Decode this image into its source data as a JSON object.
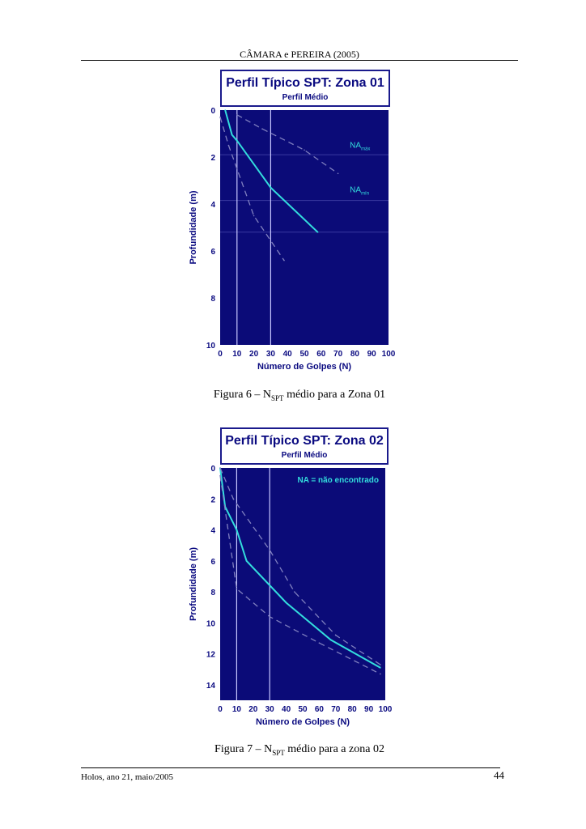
{
  "header": "CÂMARA e PEREIRA (2005)",
  "footer": {
    "left": "Holos, ano 21, maio/2005",
    "page": "44"
  },
  "colors": {
    "plot_bg": "#0b0b78",
    "axis_text": "#0a0a80",
    "mean_line": "#33dddd",
    "dashed": "#8080c0",
    "vlines": "#c8c8ff",
    "na_lines": "#3a3aa0"
  },
  "chart_data": [
    {
      "type": "line",
      "title": "Perfil Típico SPT: Zona 01",
      "subtitle": "Perfil Médio",
      "xlabel": "Número de Golpes (N)",
      "ylabel": "Profundidade (m)",
      "xlim": [
        0,
        100
      ],
      "ylim": [
        0,
        10
      ],
      "y_inverted": true,
      "xticks": [
        "0",
        "10",
        "20",
        "30",
        "40",
        "50",
        "60",
        "70",
        "80",
        "90",
        "100"
      ],
      "yticks": [
        "0",
        "2",
        "4",
        "6",
        "8",
        "10"
      ],
      "vertical_lines": [
        10,
        30
      ],
      "na_lines": [
        1.9,
        3.85,
        5.2
      ],
      "annotations": [
        {
          "base": "NA",
          "sub": "máx",
          "x": 77,
          "y": 1.6
        },
        {
          "base": "NA",
          "sub": "mín",
          "x": 77,
          "y": 3.5
        }
      ],
      "series": [
        {
          "style": "solid",
          "values": [
            [
              3,
              0
            ],
            [
              7,
              1.05
            ],
            [
              10,
              1.3
            ],
            [
              30,
              3.3
            ],
            [
              58,
              5.2
            ]
          ]
        },
        {
          "style": "dashed",
          "values": [
            [
              10,
              0.2
            ],
            [
              25,
              0.8
            ],
            [
              50,
              1.7
            ],
            [
              70,
              2.7
            ]
          ]
        },
        {
          "style": "dashed",
          "values": [
            [
              0,
              0.3
            ],
            [
              5,
              1.5
            ],
            [
              10,
              2.5
            ],
            [
              20,
              4.5
            ],
            [
              38,
              6.4
            ]
          ]
        }
      ]
    },
    {
      "type": "line",
      "title": "Perfil Típico SPT: Zona 02",
      "subtitle": "Perfil Médio",
      "xlabel": "Número de Golpes (N)",
      "ylabel": "Profundidade (m)",
      "xlim": [
        0,
        100
      ],
      "ylim": [
        0,
        15
      ],
      "y_inverted": true,
      "xticks": [
        "0",
        "10",
        "20",
        "30",
        "40",
        "50",
        "60",
        "70",
        "80",
        "90",
        "100"
      ],
      "yticks": [
        "0",
        "2",
        "4",
        "6",
        "8",
        "10",
        "12",
        "14"
      ],
      "vertical_lines": [
        10,
        30
      ],
      "na_lines": [],
      "legend_text": "NA = não encontrado",
      "annotations": [],
      "series": [
        {
          "style": "solid",
          "values": [
            [
              0,
              0
            ],
            [
              3,
              2.5
            ],
            [
              10,
              4
            ],
            [
              16,
              6
            ],
            [
              40,
              8.7
            ],
            [
              67,
              11.1
            ],
            [
              97,
              12.9
            ]
          ]
        },
        {
          "style": "dashed",
          "values": [
            [
              0,
              0
            ],
            [
              8,
              2
            ],
            [
              30,
              5.3
            ],
            [
              45,
              8
            ],
            [
              70,
              10.8
            ],
            [
              97,
              12.7
            ]
          ]
        },
        {
          "style": "dashed",
          "values": [
            [
              0,
              0.5
            ],
            [
              10,
              7.8
            ],
            [
              30,
              9.6
            ],
            [
              60,
              11.3
            ],
            [
              97,
              13.3
            ]
          ]
        }
      ]
    }
  ],
  "captions": [
    {
      "pre": "Figura 6 – N",
      "sub": "SPT",
      "post": " médio para a Zona 01"
    },
    {
      "pre": "Figura 7 – N",
      "sub": "SPT",
      "post": " médio para a zona 02"
    }
  ]
}
